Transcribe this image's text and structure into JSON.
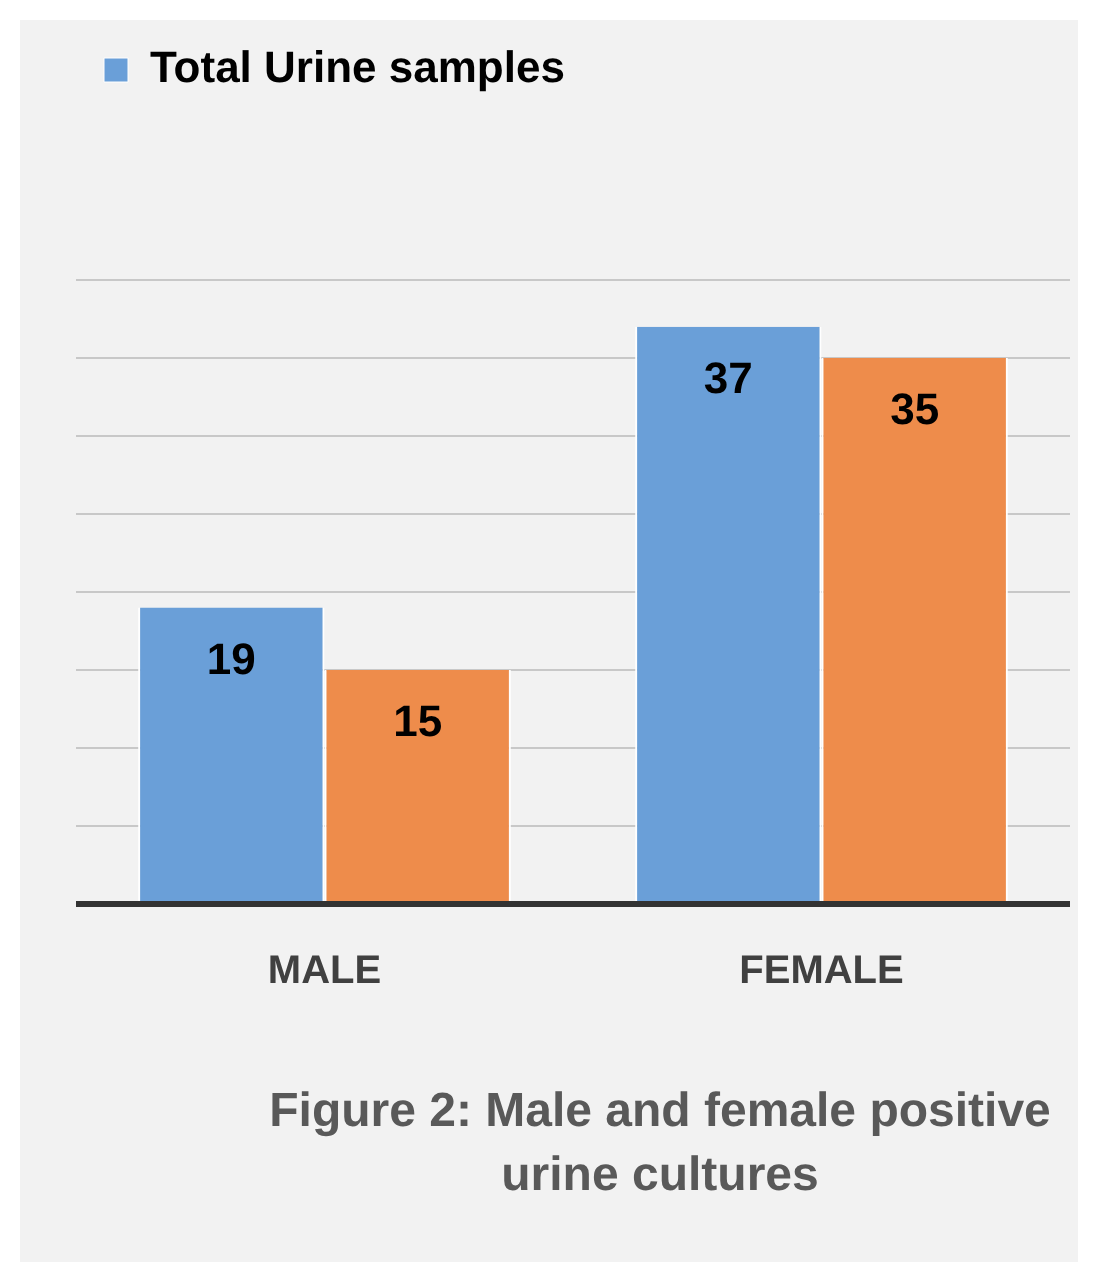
{
  "chart_data": {
    "type": "bar",
    "title": "Figure 2:  Male and female positive urine cultures",
    "categories": [
      "MALE",
      "FEMALE"
    ],
    "series": [
      {
        "name": "Total Urine samples",
        "color": "#6a9fd8",
        "values": [
          19,
          37
        ]
      },
      {
        "color": "#ee8c4b",
        "values": [
          15,
          35
        ]
      }
    ],
    "grid": "y",
    "legend": "top left",
    "tick_labels": "x",
    "data_labels": true
  }
}
